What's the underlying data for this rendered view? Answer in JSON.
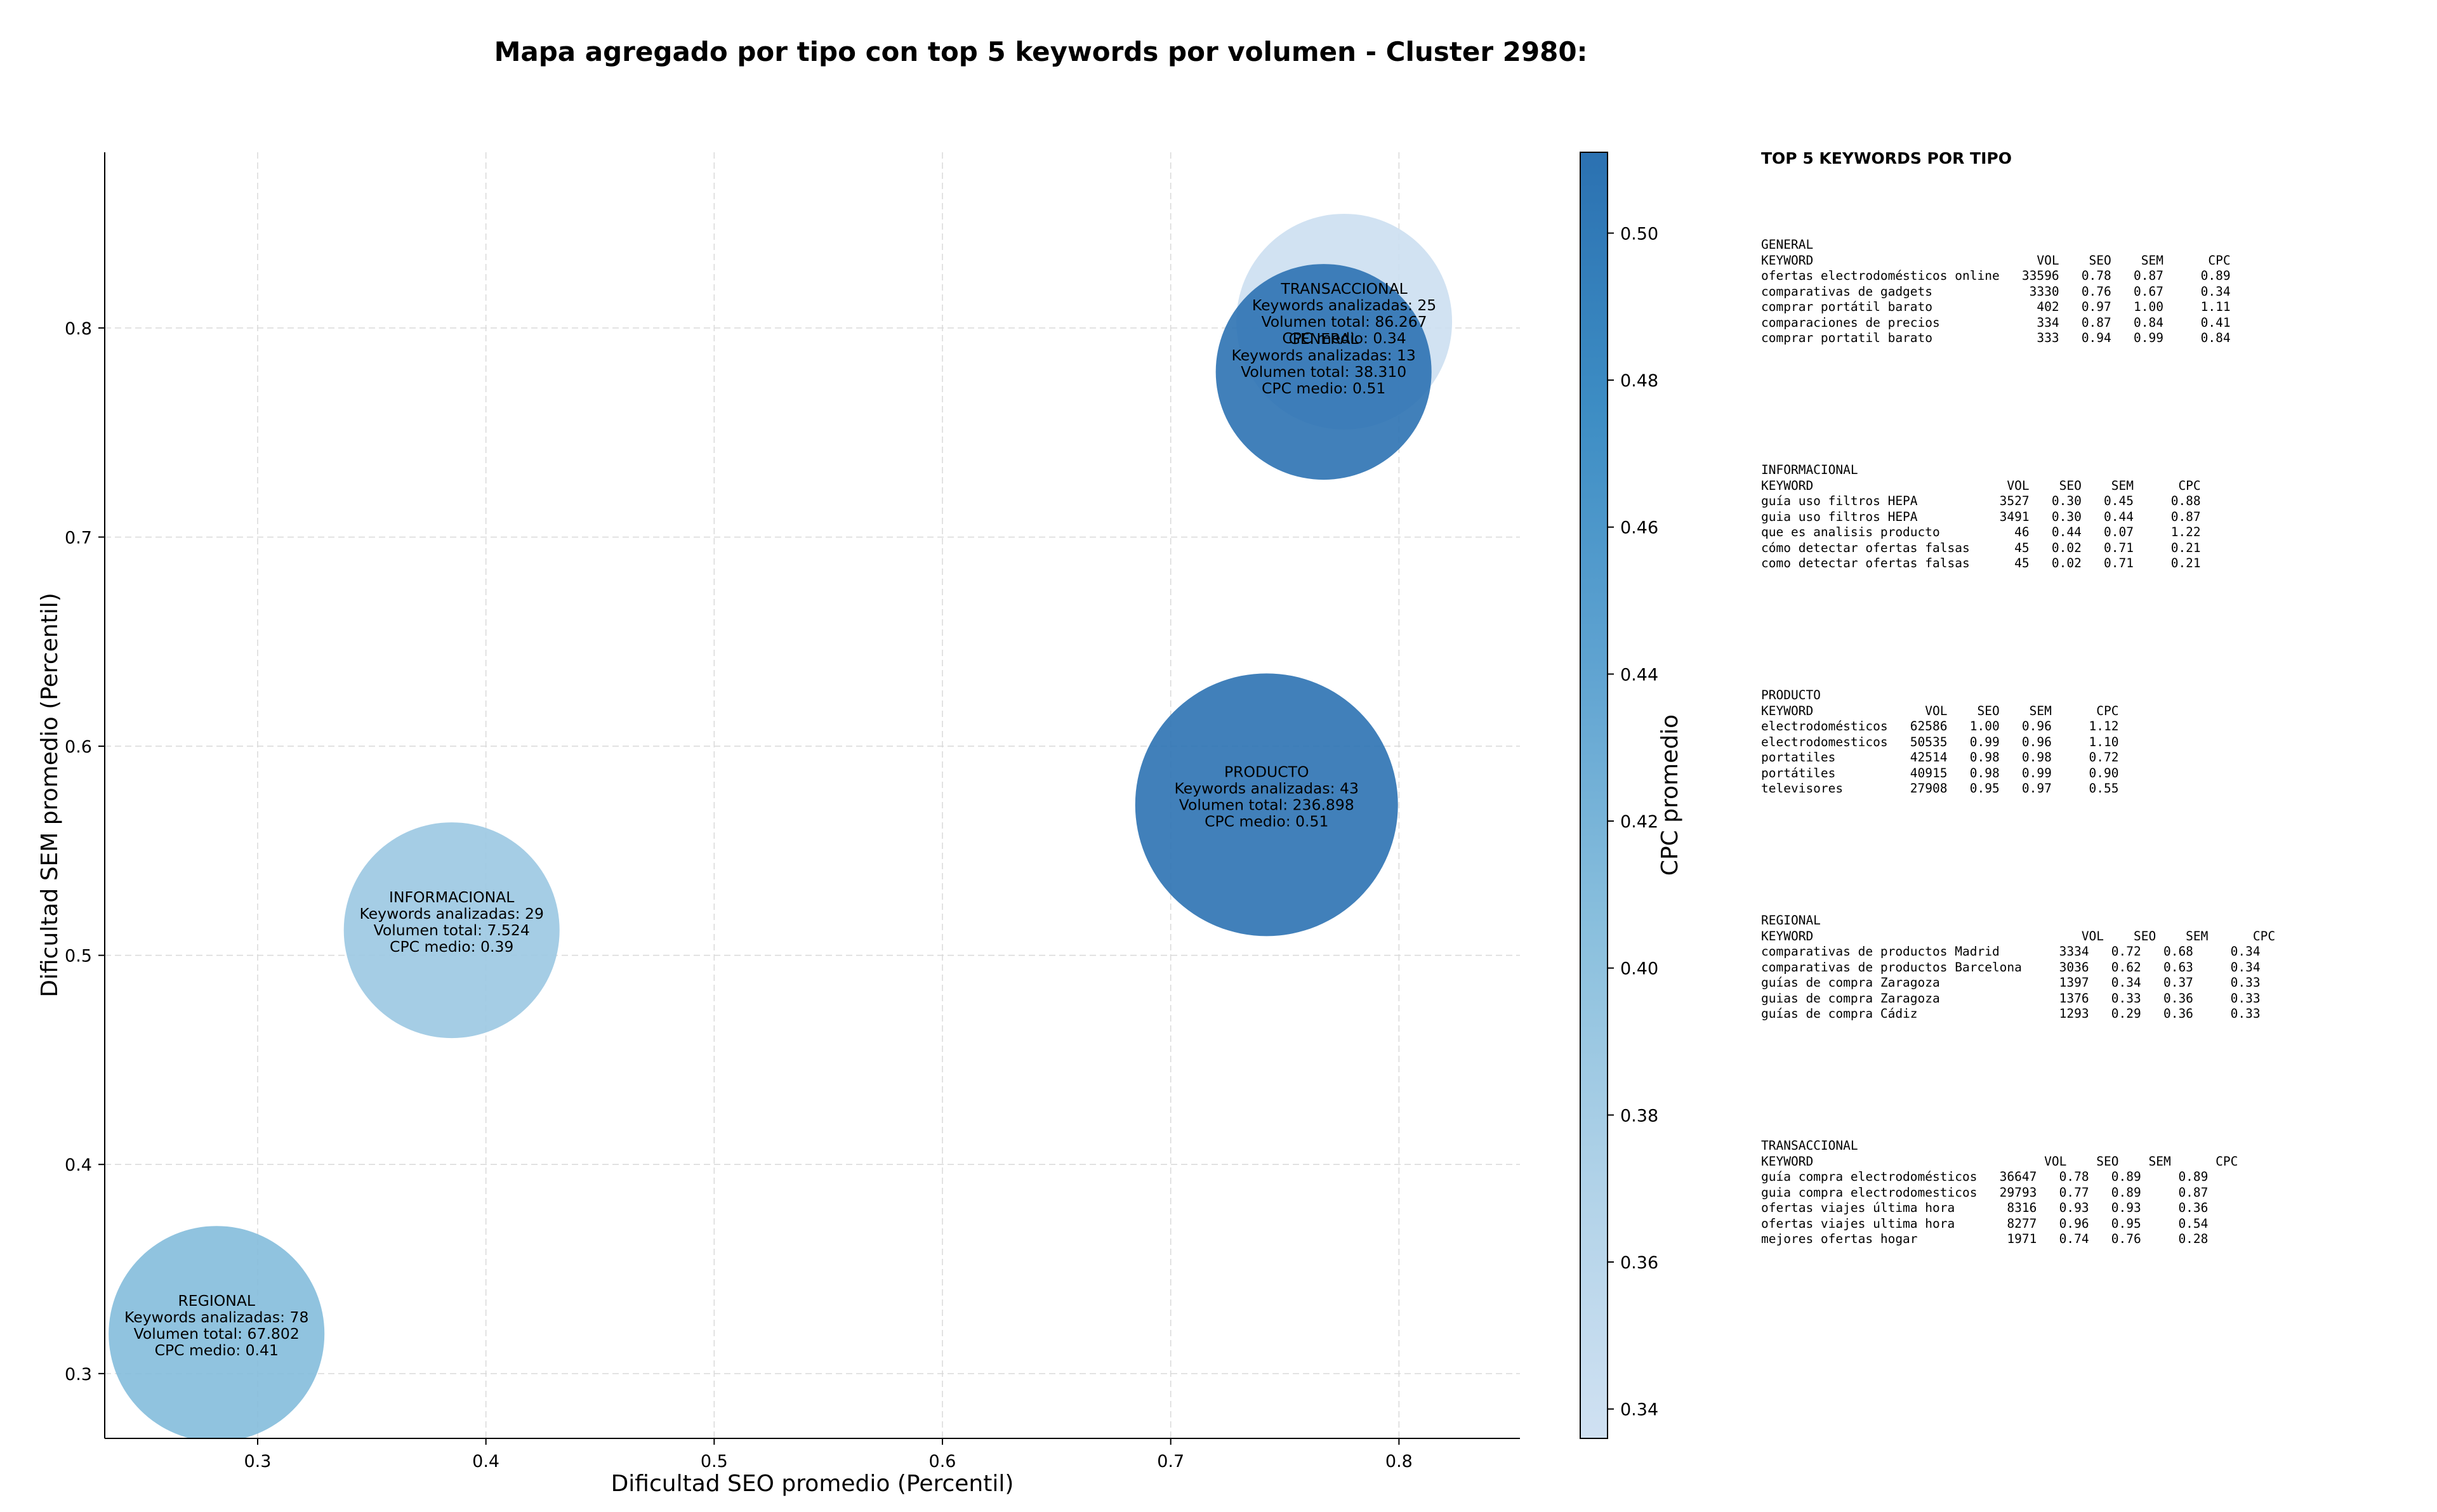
{
  "title": "Mapa agregado por tipo con top 5 keywords por volumen - Cluster 2980:",
  "chart_data": {
    "type": "scatter",
    "subtype": "bubble",
    "title": "Mapa agregado por tipo con top 5 keywords por volumen - Cluster 2980:",
    "xlabel": "Dificultad SEO promedio (Percentil)",
    "ylabel": "Dificultad SEM promedio (Percentil)",
    "xlim": [
      0.233,
      0.853
    ],
    "ylim": [
      0.269,
      0.884
    ],
    "xticks": [
      0.3,
      0.4,
      0.5,
      0.6,
      0.7,
      0.8
    ],
    "yticks": [
      0.3,
      0.4,
      0.5,
      0.6,
      0.7,
      0.8
    ],
    "grid": true,
    "colorbar": {
      "label": "CPC promedio",
      "min": 0.336,
      "max": 0.511,
      "ticks": [
        0.34,
        0.36,
        0.38,
        0.4,
        0.42,
        0.44,
        0.46,
        0.48,
        0.5
      ],
      "colormap": [
        "#d0e1f2",
        "#b0d2e8",
        "#89bfdd",
        "#5fa3d1",
        "#3d8dc4",
        "#2b71b1"
      ]
    },
    "points": [
      {
        "tipo": "REGIONAL",
        "x": 0.282,
        "y": 0.319,
        "keywords": 78,
        "volumen": 67802,
        "cpc": 0.41,
        "label_lines": [
          "REGIONAL",
          "",
          "Keywords analizadas: 78",
          "Volumen total: 67.802",
          "CPC medio: 0.41"
        ]
      },
      {
        "tipo": "INFORMACIONAL",
        "x": 0.385,
        "y": 0.512,
        "keywords": 29,
        "volumen": 7524,
        "cpc": 0.39,
        "label_lines": [
          "INFORMACIONAL",
          "",
          "Keywords analizadas: 29",
          "Volumen total: 7.524",
          "CPC medio: 0.39"
        ]
      },
      {
        "tipo": "PRODUCTO",
        "x": 0.742,
        "y": 0.572,
        "keywords": 43,
        "volumen": 236898,
        "cpc": 0.51,
        "label_lines": [
          "PRODUCTO",
          "",
          "Keywords analizadas: 43",
          "Volumen total: 236.898",
          "CPC medio: 0.51"
        ]
      },
      {
        "tipo": "GENERAL",
        "x": 0.767,
        "y": 0.779,
        "keywords": 13,
        "volumen": 38310,
        "cpc": 0.51,
        "label_lines": [
          "GENERAL",
          "",
          "Keywords analizadas: 13",
          "Volumen total: 38.310",
          "CPC medio: 0.51"
        ]
      },
      {
        "tipo": "TRANSACCIONAL",
        "x": 0.776,
        "y": 0.803,
        "keywords": 25,
        "volumen": 86267,
        "cpc": 0.34,
        "label_lines": [
          "TRANSACCIONAL",
          "",
          "Keywords analizadas: 25",
          "Volumen total: 86.267",
          "CPC medio: 0.34"
        ]
      }
    ]
  },
  "side_panel": {
    "title": "TOP 5 KEYWORDS POR TIPO",
    "blocks": [
      {
        "text": "GENERAL\nKEYWORD                              VOL    SEO    SEM      CPC\nofertas electrodomésticos online   33596   0.78   0.87     0.89\ncomparativas de gadgets             3330   0.76   0.67     0.34\ncomprar portátil barato              402   0.97   1.00     1.11\ncomparaciones de precios             334   0.87   0.84     0.41\ncomprar portatil barato              333   0.94   0.99     0.84"
      },
      {
        "text": "INFORMACIONAL\nKEYWORD                          VOL    SEO    SEM      CPC\nguía uso filtros HEPA           3527   0.30   0.45     0.88\nguia uso filtros HEPA           3491   0.30   0.44     0.87\nque es analisis producto          46   0.44   0.07     1.22\ncómo detectar ofertas falsas      45   0.02   0.71     0.21\ncomo detectar ofertas falsas      45   0.02   0.71     0.21"
      },
      {
        "text": "PRODUCTO\nKEYWORD               VOL    SEO    SEM      CPC\nelectrodomésticos   62586   1.00   0.96     1.12\nelectrodomesticos   50535   0.99   0.96     1.10\nportatiles          42514   0.98   0.98     0.72\nportátiles          40915   0.98   0.99     0.90\ntelevisores         27908   0.95   0.97     0.55"
      },
      {
        "text": "REGIONAL\nKEYWORD                                    VOL    SEO    SEM      CPC\ncomparativas de productos Madrid        3334   0.72   0.68     0.34\ncomparativas de productos Barcelona     3036   0.62   0.63     0.34\nguías de compra Zaragoza                1397   0.34   0.37     0.33\nguias de compra Zaragoza                1376   0.33   0.36     0.33\nguías de compra Cádiz                   1293   0.29   0.36     0.33"
      },
      {
        "text": "TRANSACCIONAL\nKEYWORD                               VOL    SEO    SEM      CPC\nguía compra electrodomésticos   36647   0.78   0.89     0.89\nguia compra electrodomesticos   29793   0.77   0.89     0.87\nofertas viajes última hora       8316   0.93   0.93     0.36\nofertas viajes ultima hora       8277   0.96   0.95     0.54\nmejores ofertas hogar            1971   0.74   0.76     0.28"
      }
    ]
  }
}
